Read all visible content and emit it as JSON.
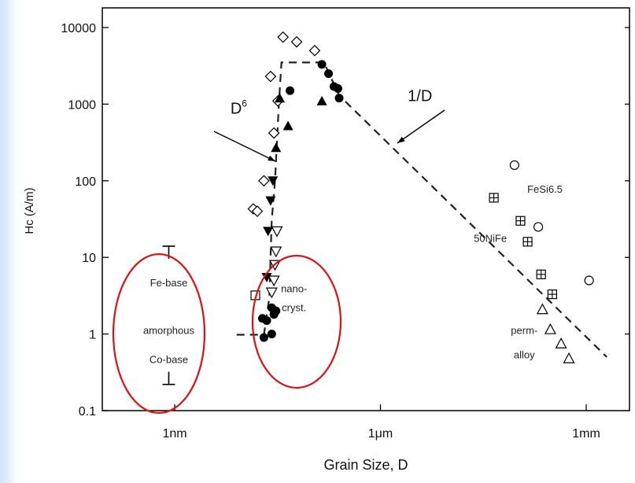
{
  "chart_data": {
    "type": "scatter",
    "xscale": "log",
    "yscale": "log",
    "xlabel": "Grain Size, D",
    "ylabel": "Hc (A/m)",
    "ylim": [
      0.1,
      10000
    ],
    "xlim": [
      0.1,
      5000000
    ],
    "x_ticks": [
      {
        "value": 1,
        "label": "1nm"
      },
      {
        "value": 1000,
        "label": "1μm"
      },
      {
        "value": 1000000,
        "label": "1mm"
      }
    ],
    "y_ticks": [
      {
        "value": 10000,
        "label": "10000"
      },
      {
        "value": 1000,
        "label": "1000"
      },
      {
        "value": 100,
        "label": "100"
      },
      {
        "value": 10,
        "label": "10"
      },
      {
        "value": 1,
        "label": "1"
      },
      {
        "value": 0.1,
        "label": "0.1"
      }
    ],
    "series": [
      {
        "marker": "open-diamond",
        "points": [
          [
            38,
            7500
          ],
          [
            60,
            6500
          ],
          [
            110,
            5000
          ],
          [
            25,
            2300
          ],
          [
            32,
            1100
          ],
          [
            28,
            420
          ],
          [
            20,
            100
          ],
          [
            14,
            43
          ],
          [
            16,
            40
          ]
        ]
      },
      {
        "marker": "filled-circle",
        "points": [
          [
            140,
            3300
          ],
          [
            175,
            2500
          ],
          [
            210,
            1700
          ],
          [
            240,
            1600
          ],
          [
            250,
            1200
          ],
          [
            48,
            1500
          ],
          [
            26,
            2.2
          ],
          [
            30,
            2
          ],
          [
            28,
            1.8
          ],
          [
            19,
            1.6
          ],
          [
            22,
            1.5
          ],
          [
            20,
            0.9
          ],
          [
            26,
            1
          ]
        ]
      },
      {
        "marker": "filled-triangle-up",
        "points": [
          [
            34,
            1200
          ],
          [
            45,
            520
          ],
          [
            140,
            1100
          ],
          [
            30,
            270
          ]
        ]
      },
      {
        "marker": "filled-triangle-down",
        "points": [
          [
            27,
            100
          ],
          [
            25,
            55
          ],
          [
            23,
            22
          ],
          [
            22,
            5.5
          ]
        ]
      },
      {
        "marker": "open-triangle-down",
        "points": [
          [
            31,
            22
          ],
          [
            30,
            12
          ],
          [
            29,
            8
          ],
          [
            28,
            5
          ],
          [
            26,
            3.5
          ]
        ]
      },
      {
        "marker": "open-square",
        "points": [
          [
            15,
            3.2
          ]
        ]
      },
      {
        "marker": "open-circle",
        "points": [
          [
            90000,
            160
          ],
          [
            200000,
            25
          ],
          [
            1100000,
            5
          ]
        ]
      },
      {
        "marker": "boxed-plus",
        "points": [
          [
            45000,
            60
          ],
          [
            110000,
            30
          ],
          [
            140000,
            16
          ],
          [
            220000,
            6
          ],
          [
            320000,
            3.3
          ]
        ]
      },
      {
        "marker": "open-triangle-up",
        "points": [
          [
            230000,
            2.1
          ],
          [
            300000,
            1.15
          ],
          [
            430000,
            0.75
          ],
          [
            560000,
            0.48
          ]
        ]
      },
      {
        "marker": "t-bar",
        "points": [
          [
            0.82,
            14
          ],
          [
            0.82,
            0.22
          ]
        ]
      }
    ],
    "guide_lines": [
      {
        "style": "dashed",
        "points": [
          [
            8,
            0.98
          ],
          [
            20,
            0.98
          ],
          [
            24,
            3
          ],
          [
            26,
            30
          ],
          [
            29,
            100
          ],
          [
            33,
            1000
          ],
          [
            36,
            3500
          ],
          [
            150,
            3500
          ],
          [
            250,
            1300
          ],
          [
            2000000,
            0.5
          ]
        ]
      }
    ],
    "annotations": [
      {
        "text": "1/D",
        "x": 2500,
        "y": 1100
      },
      {
        "text": "D",
        "sup": "6",
        "x": 6.5,
        "y": 750
      },
      {
        "text": "FeSi6.5",
        "x": 250000,
        "y": 70
      },
      {
        "text": "50NiFe",
        "x": 40000,
        "y": 16
      },
      {
        "text": "nano-",
        "x": 55,
        "y": 3.5
      },
      {
        "text": "cryst.",
        "x": 55,
        "y": 2.0
      },
      {
        "text": "Fe-base",
        "x": 0.82,
        "y": 4.2
      },
      {
        "text": "amorphous",
        "x": 0.82,
        "y": 1.0
      },
      {
        "text": "Co-base",
        "x": 0.82,
        "y": 0.42
      },
      {
        "text": "perm-",
        "x": 125000,
        "y": 1.0
      },
      {
        "text": "alloy",
        "x": 125000,
        "y": 0.48
      }
    ],
    "colors": {
      "points": "#000000",
      "guide": "#222222",
      "highlight": "#dd1111"
    },
    "grid": false
  }
}
